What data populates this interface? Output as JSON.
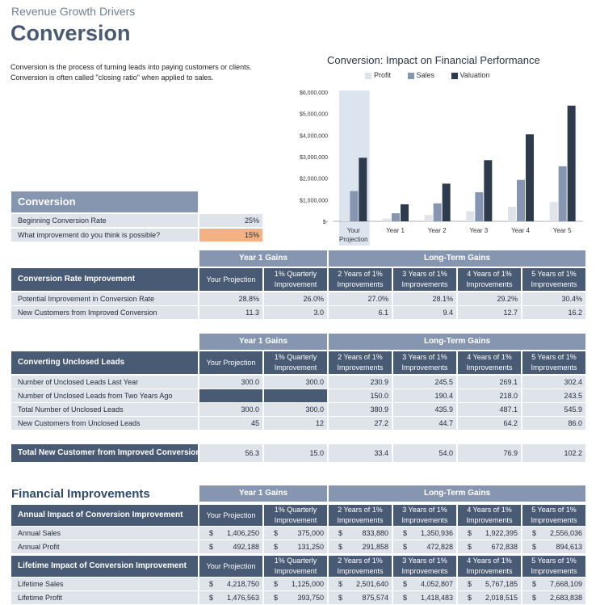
{
  "header": {
    "subtitle": "Revenue Growth Drivers",
    "title": "Conversion",
    "description": "Conversion is the process of turning leads into paying customers or clients.  Conversion is often called \"closing ratio\" when applied to sales."
  },
  "inputs": {
    "section_title": "Conversion",
    "rows": [
      {
        "label": "Beginning Conversion Rate",
        "value": "25%"
      },
      {
        "label": "What improvement do you think is possible?",
        "value": "15%"
      }
    ]
  },
  "bands": {
    "year1": "Year 1 Gains",
    "longterm": "Long-Term Gains"
  },
  "columns": [
    "Your Projection",
    "1% Quarterly Improvement",
    "2 Years of 1% Improvements",
    "3 Years of 1% Improvements",
    "4 Years of 1% Improvements",
    "5 Years of 1% Improvements"
  ],
  "table1": {
    "title": "Conversion Rate Improvement",
    "rows": [
      {
        "label": "Potential Improvement in Conversion Rate",
        "values": [
          "28.8%",
          "26.0%",
          "27.0%",
          "28.1%",
          "29.2%",
          "30.4%"
        ]
      },
      {
        "label": "New Customers from Improved Conversion",
        "values": [
          "11.3",
          "3.0",
          "6.1",
          "9.4",
          "12.7",
          "16.2"
        ]
      }
    ]
  },
  "table2": {
    "title": "Converting Unclosed Leads",
    "rows": [
      {
        "label": "Number of Unclosed Leads Last Year",
        "values": [
          "300.0",
          "300.0",
          "230.9",
          "245.5",
          "269.1",
          "302.4"
        ]
      },
      {
        "label": "Number of Unclosed Leads from Two Years Ago",
        "values": [
          "",
          "",
          "150.0",
          "190.4",
          "218.0",
          "243.5"
        ]
      },
      {
        "label": "Total Number of Unclosed Leads",
        "values": [
          "300.0",
          "300.0",
          "380.9",
          "435.9",
          "487.1",
          "545.9"
        ]
      },
      {
        "label": "New Customers from Unclosed Leads",
        "values": [
          "45",
          "12",
          "27.2",
          "44.7",
          "64.2",
          "86.0"
        ]
      }
    ]
  },
  "total": {
    "label": "Total New Customer from Improved Conversion",
    "values": [
      "56.3",
      "15.0",
      "33.4",
      "54.0",
      "76.9",
      "102.2"
    ]
  },
  "financial": {
    "section_title": "Financial Improvements",
    "annual_title": "Annual Impact of Conversion Improvement",
    "annual_rows": [
      {
        "label": "Annual Sales",
        "values": [
          "1,406,250",
          "375,000",
          "833,880",
          "1,350,936",
          "1,922,395",
          "2,556,036"
        ]
      },
      {
        "label": "Annual Profit",
        "values": [
          "492,188",
          "131,250",
          "291,858",
          "472,828",
          "672,838",
          "894,613"
        ]
      }
    ],
    "lifetime_title": "Lifetime Impact of Conversion Improvement",
    "lifetime_rows": [
      {
        "label": "Lifetime Sales",
        "values": [
          "4,218,750",
          "1,125,000",
          "2,501,640",
          "4,052,807",
          "5,767,185",
          "7,668,109"
        ]
      },
      {
        "label": "Lifetime Profit",
        "values": [
          "1,476,563",
          "393,750",
          "875,574",
          "1,418,483",
          "2,018,515",
          "2,683,838"
        ]
      }
    ],
    "currency": "$"
  },
  "chart_data": {
    "type": "bar",
    "title": "Conversion:  Impact on Financial Performance",
    "categories": [
      "Your Projection",
      "Year 1",
      "Year 2",
      "Year 3",
      "Year 4",
      "Year 5"
    ],
    "series": [
      {
        "name": "Profit",
        "color": "#dfe3ea",
        "values": [
          492188,
          131250,
          291858,
          472828,
          672838,
          894613
        ]
      },
      {
        "name": "Sales",
        "color": "#8796b0",
        "values": [
          1406250,
          375000,
          833880,
          1350936,
          1922395,
          2556036
        ]
      },
      {
        "name": "Valuation",
        "color": "#2e3a4e",
        "values": [
          2950000,
          790000,
          1750000,
          2840000,
          4040000,
          5370000
        ]
      }
    ],
    "yticks": [
      "$-",
      "$1,000,000",
      "$2,000,000",
      "$3,000,000",
      "$4,000,000",
      "$5,000,000",
      "$6,000,000"
    ],
    "ylim": [
      0,
      6000000
    ],
    "highlight_category": "Your Projection",
    "legend": "top"
  }
}
